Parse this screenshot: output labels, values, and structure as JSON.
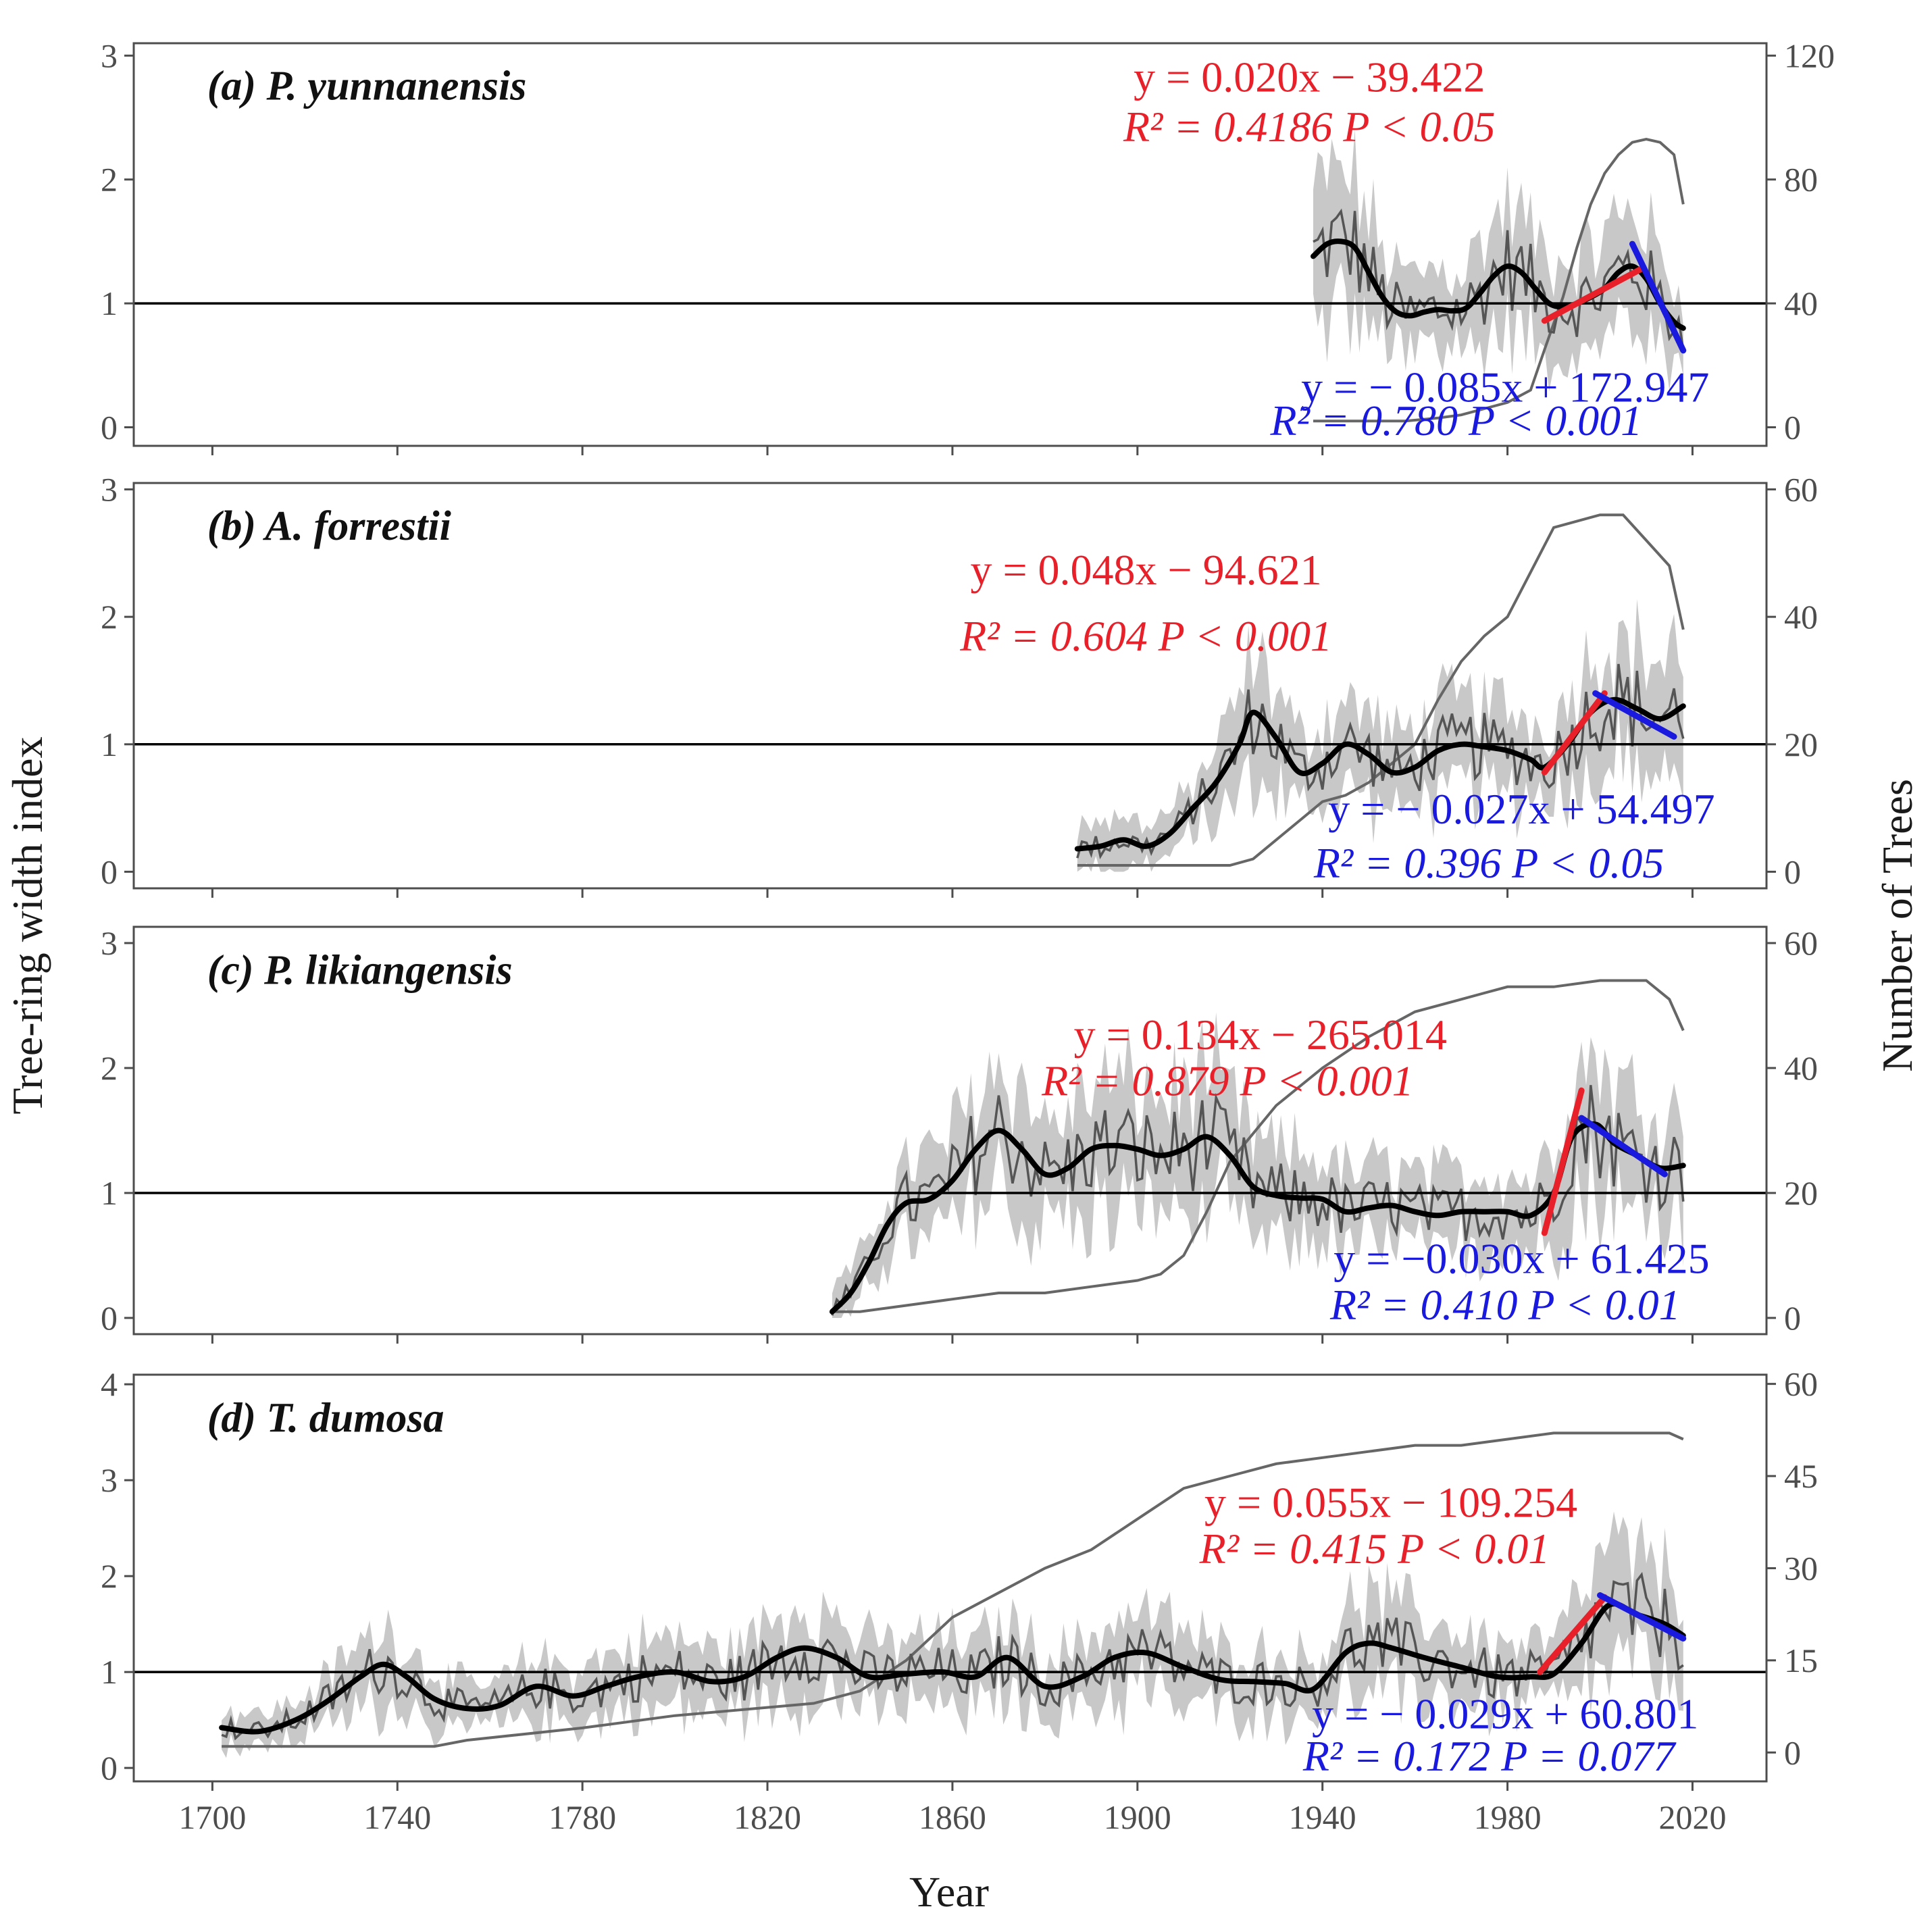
{
  "figure": {
    "y_axis_left_title": "Tree-ring width index",
    "y_axis_right_title": "Number of Trees",
    "x_axis_title": "Year",
    "x_ticks": [
      "1700",
      "1740",
      "1780",
      "1820",
      "1860",
      "1900",
      "1940",
      "1980",
      "2020"
    ],
    "colors": {
      "frame": "#4d4d4d",
      "index_line": "#555555",
      "smooth_line": "#000000",
      "ci_band": "#c8c8c8",
      "sample_depth": "#666666",
      "increase_fit": "#e8202a",
      "decrease_fit": "#1a1adf"
    }
  },
  "chart_data": [
    {
      "type": "line",
      "id": "a",
      "title": "(a) P. yunnanensis",
      "xlim": [
        1683,
        2036
      ],
      "ylim_left": [
        -0.15,
        3.1
      ],
      "ylim_right": [
        -6,
        124
      ],
      "yticks_left": [
        0,
        1,
        2,
        3
      ],
      "yticks_right": [
        0,
        40,
        80,
        120
      ],
      "yticks_left_labels": [
        "0",
        "1",
        "2",
        "3"
      ],
      "yticks_right_labels": [
        "0",
        "40",
        "80",
        "120"
      ],
      "reference_line": 1,
      "xlabel": "Year",
      "ylabel": "Tree-ring width index",
      "ylabel_right": "Number of Trees",
      "smoothed_index": {
        "years": [
          1938,
          1941,
          1944,
          1947,
          1950,
          1953,
          1956,
          1959,
          1962,
          1965,
          1968,
          1971,
          1974,
          1977,
          1980,
          1983,
          1986,
          1989,
          1992,
          1995,
          1998,
          2001,
          2004,
          2007,
          2010,
          2013,
          2016,
          2018
        ],
        "values": [
          1.38,
          1.48,
          1.5,
          1.45,
          1.25,
          1.05,
          0.93,
          0.9,
          0.93,
          0.95,
          0.94,
          0.96,
          1.08,
          1.22,
          1.3,
          1.25,
          1.12,
          1.0,
          0.97,
          1.0,
          1.05,
          1.12,
          1.25,
          1.3,
          1.2,
          1.0,
          0.85,
          0.8
        ]
      },
      "sample_depth": {
        "years": [
          1938,
          1940,
          1945,
          1950,
          1958,
          1965,
          1970,
          1975,
          1980,
          1985,
          1988,
          1992,
          1995,
          1998,
          2001,
          2004,
          2007,
          2010,
          2013,
          2016,
          2018
        ],
        "values": [
          2,
          2,
          2,
          2,
          2,
          3,
          4,
          6,
          8,
          12,
          25,
          42,
          58,
          72,
          82,
          88,
          92,
          93,
          92,
          88,
          72
        ]
      },
      "fits": [
        {
          "label_eq": "y = 0.020x − 39.422",
          "label_stat": "R² = 0.4186  P < 0.05",
          "years": [
            1988,
            2009
          ],
          "values": [
            0.86,
            1.28
          ],
          "color": "increase"
        },
        {
          "label_eq": "y = − 0.085x + 172.947",
          "label_stat": "R² = 0.780  P < 0.001",
          "years": [
            2007,
            2018
          ],
          "values": [
            1.48,
            0.62
          ],
          "color": "decrease"
        }
      ]
    },
    {
      "type": "line",
      "id": "b",
      "title": "(b) A. forrestii",
      "xlim": [
        1683,
        2036
      ],
      "ylim_left": [
        -0.13,
        3.05
      ],
      "ylim_right": [
        -2.6,
        61
      ],
      "yticks_left": [
        0,
        1,
        2,
        3
      ],
      "yticks_right": [
        0,
        20,
        40,
        60
      ],
      "yticks_left_labels": [
        "0",
        "1",
        "2",
        "3"
      ],
      "yticks_right_labels": [
        "0",
        "20",
        "40",
        "60"
      ],
      "reference_line": 1,
      "xlabel": "Year",
      "ylabel": "Tree-ring width index",
      "ylabel_right": "Number of Trees",
      "smoothed_index": {
        "years": [
          1887,
          1892,
          1897,
          1902,
          1907,
          1912,
          1917,
          1922,
          1925,
          1930,
          1935,
          1940,
          1945,
          1950,
          1955,
          1960,
          1965,
          1970,
          1975,
          1980,
          1985,
          1988,
          1993,
          1998,
          2003,
          2008,
          2013,
          2018
        ],
        "values": [
          0.18,
          0.2,
          0.25,
          0.2,
          0.3,
          0.5,
          0.7,
          1.0,
          1.25,
          1.05,
          0.78,
          0.85,
          1.0,
          0.92,
          0.78,
          0.82,
          0.95,
          1.0,
          0.98,
          0.95,
          0.88,
          0.82,
          1.0,
          1.25,
          1.35,
          1.28,
          1.2,
          1.3
        ]
      },
      "sample_depth": {
        "years": [
          1887,
          1900,
          1912,
          1920,
          1925,
          1930,
          1935,
          1940,
          1945,
          1950,
          1955,
          1960,
          1965,
          1970,
          1975,
          1980,
          1985,
          1990,
          1995,
          2000,
          2005,
          2010,
          2015,
          2018
        ],
        "values": [
          1,
          1,
          1,
          1,
          2,
          5,
          8,
          11,
          12,
          14,
          17,
          20,
          27,
          33,
          37,
          40,
          47,
          54,
          55,
          56,
          56,
          52,
          48,
          38
        ]
      },
      "fits": [
        {
          "label_eq": "y = 0.048x − 94.621",
          "label_stat": "R² = 0.604  P < 0.001",
          "years": [
            1988,
            2001
          ],
          "values": [
            0.78,
            1.4
          ],
          "color": "increase"
        },
        {
          "label_eq": "y = − 0.027x + 54.497",
          "label_stat": "R² = 0.396   P < 0.05",
          "years": [
            1999,
            2016
          ],
          "values": [
            1.4,
            1.06
          ],
          "color": "decrease"
        }
      ]
    },
    {
      "type": "line",
      "id": "c",
      "title": "(c) P. likiangensis",
      "xlim": [
        1683,
        2036
      ],
      "ylim_left": [
        -0.13,
        3.13
      ],
      "ylim_right": [
        -2.6,
        62.6
      ],
      "yticks_left": [
        0,
        1,
        2,
        3
      ],
      "yticks_right": [
        0,
        20,
        40,
        60
      ],
      "yticks_left_labels": [
        "0",
        "1",
        "2",
        "3"
      ],
      "yticks_right_labels": [
        "0",
        "20",
        "40",
        "60"
      ],
      "reference_line": 1,
      "xlabel": "Year",
      "ylabel": "Tree-ring width index",
      "ylabel_right": "Number of Trees",
      "smoothed_index": {
        "years": [
          1834,
          1838,
          1842,
          1846,
          1850,
          1855,
          1860,
          1865,
          1870,
          1875,
          1880,
          1885,
          1890,
          1895,
          1900,
          1905,
          1910,
          1915,
          1920,
          1925,
          1930,
          1935,
          1940,
          1945,
          1950,
          1955,
          1960,
          1965,
          1970,
          1975,
          1980,
          1985,
          1990,
          1994,
          1999,
          2003,
          2008,
          2013,
          2018
        ],
        "values": [
          0.05,
          0.2,
          0.45,
          0.75,
          0.92,
          0.95,
          1.1,
          1.35,
          1.5,
          1.35,
          1.15,
          1.2,
          1.35,
          1.38,
          1.35,
          1.3,
          1.35,
          1.45,
          1.3,
          1.05,
          0.98,
          0.96,
          0.95,
          0.85,
          0.88,
          0.9,
          0.85,
          0.82,
          0.85,
          0.85,
          0.85,
          0.82,
          1.0,
          1.45,
          1.55,
          1.4,
          1.3,
          1.2,
          1.22
        ]
      },
      "sample_depth": {
        "years": [
          1834,
          1840,
          1850,
          1860,
          1870,
          1880,
          1890,
          1900,
          1905,
          1910,
          1915,
          1920,
          1930,
          1940,
          1950,
          1960,
          1970,
          1975,
          1980,
          1990,
          2000,
          2005,
          2010,
          2015,
          2018
        ],
        "values": [
          1,
          1,
          2,
          3,
          4,
          4,
          5,
          6,
          7,
          10,
          17,
          25,
          34,
          40,
          45,
          49,
          51,
          52,
          53,
          53,
          54,
          54,
          54,
          51,
          46
        ]
      },
      "fits": [
        {
          "label_eq": "y = 0.134x − 265.014",
          "label_stat": "R² = 0.879   P < 0.001",
          "years": [
            1988,
            1996
          ],
          "values": [
            0.68,
            1.82
          ],
          "color": "increase"
        },
        {
          "label_eq": "y = −0.030x + 61.425",
          "label_stat": "R² = 0.410   P < 0.01",
          "years": [
            1996,
            2014
          ],
          "values": [
            1.6,
            1.15
          ],
          "color": "decrease"
        }
      ]
    },
    {
      "type": "line",
      "id": "d",
      "title": "(d) T. dumosa",
      "xlim": [
        1683,
        2036
      ],
      "ylim_left": [
        -0.14,
        4.1
      ],
      "ylim_right": [
        -4.7,
        61.5
      ],
      "yticks_left": [
        0,
        1,
        2,
        3,
        4
      ],
      "yticks_right": [
        0,
        15,
        30,
        45,
        60
      ],
      "yticks_left_labels": [
        "0",
        "1",
        "2",
        "3",
        "4"
      ],
      "yticks_right_labels": [
        "0",
        "15",
        "30",
        "45",
        "60"
      ],
      "reference_line": 1,
      "xlabel": "Year",
      "ylabel": "Tree-ring width index",
      "ylabel_right": "Number of Trees",
      "smoothed_index": {
        "years": [
          1702,
          1710,
          1718,
          1725,
          1732,
          1737,
          1742,
          1748,
          1755,
          1762,
          1770,
          1778,
          1785,
          1792,
          1800,
          1808,
          1815,
          1822,
          1828,
          1835,
          1842,
          1850,
          1858,
          1865,
          1872,
          1880,
          1888,
          1895,
          1902,
          1910,
          1918,
          1925,
          1932,
          1938,
          1945,
          1950,
          1955,
          1962,
          1970,
          1978,
          1985,
          1990,
          1996,
          2002,
          2008,
          2014,
          2018
        ],
        "values": [
          0.42,
          0.38,
          0.5,
          0.7,
          0.95,
          1.08,
          0.95,
          0.72,
          0.62,
          0.65,
          0.85,
          0.75,
          0.85,
          0.95,
          1.0,
          0.9,
          0.95,
          1.15,
          1.25,
          1.15,
          0.95,
          0.98,
          1.0,
          0.95,
          1.15,
          0.85,
          0.95,
          1.15,
          1.2,
          1.05,
          0.92,
          0.9,
          0.88,
          0.82,
          1.2,
          1.3,
          1.25,
          1.15,
          1.05,
          0.95,
          0.95,
          0.98,
          1.3,
          1.7,
          1.6,
          1.5,
          1.38
        ]
      },
      "sample_depth": {
        "years": [
          1702,
          1720,
          1748,
          1755,
          1780,
          1800,
          1830,
          1840,
          1850,
          1860,
          1870,
          1880,
          1890,
          1900,
          1910,
          1920,
          1930,
          1940,
          1950,
          1960,
          1970,
          1980,
          1990,
          2000,
          2010,
          2015,
          2018
        ],
        "values": [
          1,
          1,
          1,
          2,
          4,
          6,
          8,
          10,
          15,
          22,
          26,
          30,
          33,
          38,
          43,
          45,
          47,
          48,
          49,
          50,
          50,
          51,
          52,
          52,
          52,
          52,
          51
        ]
      },
      "fits": [
        {
          "label_eq": "y = 0.055x − 109.254",
          "label_stat": "R² = 0.415   P < 0.01",
          "years": [
            1987,
            2001
          ],
          "values": [
            1.0,
            1.78
          ],
          "color": "increase"
        },
        {
          "label_eq": "y = − 0.029x + 60.801",
          "label_stat": "R² = 0.172  P = 0.077",
          "years": [
            2000,
            2018
          ],
          "values": [
            1.8,
            1.35
          ],
          "color": "decrease"
        }
      ]
    }
  ]
}
